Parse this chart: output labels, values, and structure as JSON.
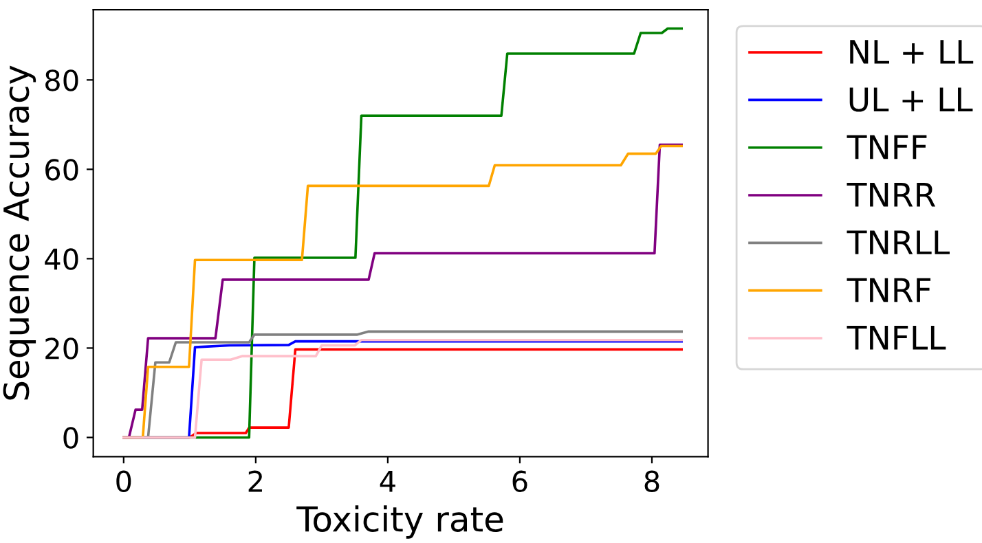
{
  "chart_data": {
    "type": "line",
    "xlabel": "Toxicity rate",
    "ylabel": "Sequence Accuracy",
    "xlim": [
      -0.46,
      8.85
    ],
    "ylim": [
      -4.3,
      95.7
    ],
    "xticks": [
      0,
      2,
      4,
      6,
      8
    ],
    "yticks": [
      0,
      20,
      40,
      60,
      80
    ],
    "grid": false,
    "legend": "top right",
    "marker": "none",
    "line_style": "solid",
    "series": [
      {
        "name": "NL + LL",
        "color": "#ff0000",
        "x": [
          0,
          1.0,
          1.1,
          1.85,
          1.9,
          2.5,
          2.6,
          8.45
        ],
        "values": [
          0,
          0,
          1,
          1,
          2.2,
          2.2,
          19.7,
          19.7
        ]
      },
      {
        "name": "UL + LL",
        "color": "#0000ff",
        "x": [
          0,
          0.99,
          1.08,
          1.6,
          2.5,
          2.6,
          8.45
        ],
        "values": [
          0,
          0,
          20.2,
          20.6,
          20.7,
          21.5,
          21.5
        ]
      },
      {
        "name": "TNFF",
        "color": "#008000",
        "x": [
          0,
          1.9,
          1.98,
          3.51,
          3.6,
          5.72,
          5.81,
          7.73,
          7.83,
          8.15,
          8.24,
          8.45
        ],
        "values": [
          0,
          0,
          40.2,
          40.2,
          72,
          72,
          85.9,
          85.9,
          90.5,
          90.5,
          91.5,
          91.5
        ]
      },
      {
        "name": "TNRR",
        "color": "#800080",
        "x": [
          0,
          0.08,
          0.18,
          0.28,
          0.37,
          1.39,
          1.5,
          3.71,
          3.8,
          8.04,
          8.12,
          8.45
        ],
        "values": [
          0,
          0,
          6.2,
          6.2,
          22.2,
          22.2,
          35.3,
          35.3,
          41.2,
          41.2,
          65.5,
          65.5
        ]
      },
      {
        "name": "TNRLL",
        "color": "#808080",
        "x": [
          0,
          0.37,
          0.48,
          0.69,
          0.79,
          1.9,
          1.98,
          3.53,
          3.71,
          8.45
        ],
        "values": [
          0,
          0,
          16.8,
          16.8,
          21.3,
          21.3,
          23.0,
          23.0,
          23.7,
          23.7
        ]
      },
      {
        "name": "TNRF",
        "color": "#ffa500",
        "x": [
          0,
          0.29,
          0.37,
          0.99,
          1.08,
          2.7,
          2.79,
          5.53,
          5.62,
          7.53,
          7.64,
          8.06,
          8.14,
          8.45
        ],
        "values": [
          0,
          0,
          15.8,
          15.8,
          39.7,
          39.7,
          56.3,
          56.3,
          60.9,
          60.9,
          63.5,
          63.5,
          65.2,
          65.2
        ]
      },
      {
        "name": "TNFLL",
        "color": "#ffc0cb",
        "x": [
          0,
          1.08,
          1.18,
          1.62,
          1.8,
          2.91,
          3.0,
          3.5,
          3.6,
          8.45
        ],
        "values": [
          0,
          0,
          17.4,
          17.4,
          18.2,
          18.2,
          20.6,
          20.6,
          21.8,
          21.8
        ]
      }
    ]
  }
}
